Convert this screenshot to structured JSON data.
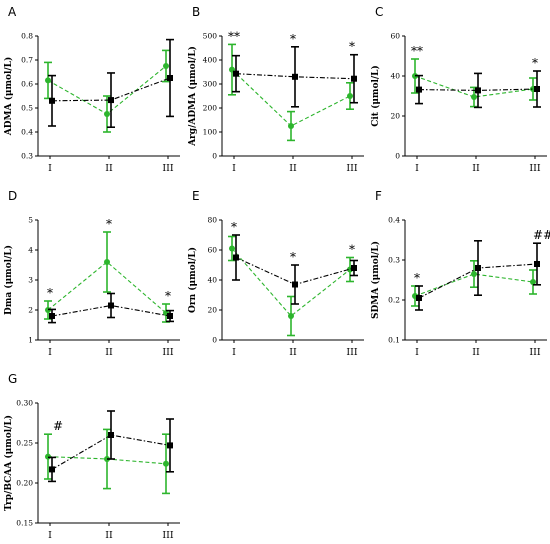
{
  "colors": {
    "green": "#2db52d",
    "black": "#000000"
  },
  "chart_data": [
    {
      "type": "line",
      "panel": "A",
      "ylabel": "ADMA (μmol/L)",
      "categories": [
        "I",
        "II",
        "III"
      ],
      "ylim": [
        0.3,
        0.8
      ],
      "yticks": [
        "0.3",
        "0.4",
        "0.5",
        "0.6",
        "0.7",
        "0.8"
      ],
      "series": [
        {
          "values": [
            0.615,
            0.475,
            0.675
          ],
          "errors": [
            0.075,
            0.075,
            0.065
          ],
          "color": "green",
          "marker": "circle",
          "dash": "dashed"
        },
        {
          "values": [
            0.53,
            0.533,
            0.625
          ],
          "errors": [
            0.105,
            0.113,
            0.16
          ],
          "color": "black",
          "marker": "square",
          "dash": "dashdot"
        }
      ],
      "annotations": []
    },
    {
      "type": "line",
      "panel": "B",
      "ylabel": "Arg/ADMA (μmol/L)",
      "categories": [
        "I",
        "II",
        "III"
      ],
      "ylim": [
        0,
        500
      ],
      "yticks": [
        "0",
        "100",
        "200",
        "300",
        "400",
        "500"
      ],
      "series": [
        {
          "values": [
            360,
            125,
            250
          ],
          "errors": [
            105,
            60,
            55
          ],
          "color": "green",
          "marker": "circle",
          "dash": "dashed"
        },
        {
          "values": [
            343,
            330,
            322
          ],
          "errors": [
            75,
            125,
            100
          ],
          "color": "black",
          "marker": "square",
          "dash": "dashdot"
        }
      ],
      "annotations": [
        {
          "cat": 0,
          "text": "**"
        },
        {
          "cat": 1,
          "text": "*"
        },
        {
          "cat": 2,
          "text": "*"
        }
      ]
    },
    {
      "type": "line",
      "panel": "C",
      "ylabel": "Cit (μmol/L)",
      "categories": [
        "I",
        "II",
        "III"
      ],
      "ylim": [
        0,
        60
      ],
      "yticks": [
        "0",
        "20",
        "40",
        "60"
      ],
      "series": [
        {
          "values": [
            40,
            29.5,
            33.5
          ],
          "errors": [
            8.5,
            4.8,
            5.5
          ],
          "color": "green",
          "marker": "circle",
          "dash": "dashed"
        },
        {
          "values": [
            33.2,
            32.8,
            33.5
          ],
          "errors": [
            7,
            8.5,
            9
          ],
          "color": "black",
          "marker": "square",
          "dash": "dashdot"
        }
      ],
      "annotations": [
        {
          "cat": 0,
          "text": "**"
        },
        {
          "cat": 2,
          "text": "*"
        }
      ]
    },
    {
      "type": "line",
      "panel": "D",
      "ylabel": "Dma (μmol/L)",
      "categories": [
        "I",
        "II",
        "III"
      ],
      "ylim": [
        1,
        5
      ],
      "yticks": [
        "1",
        "2",
        "3",
        "4",
        "5"
      ],
      "series": [
        {
          "values": [
            2.0,
            3.6,
            1.9
          ],
          "errors": [
            0.3,
            1.0,
            0.3
          ],
          "color": "green",
          "marker": "circle",
          "dash": "dashed"
        },
        {
          "values": [
            1.8,
            2.15,
            1.8
          ],
          "errors": [
            0.22,
            0.4,
            0.18
          ],
          "color": "black",
          "marker": "square",
          "dash": "dashdot"
        }
      ],
      "annotations": [
        {
          "cat": 0,
          "text": "*"
        },
        {
          "cat": 1,
          "text": "*"
        },
        {
          "cat": 2,
          "text": "*"
        }
      ]
    },
    {
      "type": "line",
      "panel": "E",
      "ylabel": "Orn (μmol/L)",
      "categories": [
        "I",
        "II",
        "III"
      ],
      "ylim": [
        0,
        80
      ],
      "yticks": [
        "0",
        "20",
        "40",
        "60",
        "80"
      ],
      "series": [
        {
          "values": [
            61,
            16,
            47
          ],
          "errors": [
            8,
            13,
            8
          ],
          "color": "green",
          "marker": "circle",
          "dash": "dashed"
        },
        {
          "values": [
            55,
            37,
            48
          ],
          "errors": [
            15,
            13,
            5
          ],
          "color": "black",
          "marker": "square",
          "dash": "dashdot"
        }
      ],
      "annotations": [
        {
          "cat": 0,
          "text": "*"
        },
        {
          "cat": 1,
          "text": "*"
        },
        {
          "cat": 2,
          "text": "*"
        }
      ]
    },
    {
      "type": "line",
      "panel": "F",
      "ylabel": "SDMA (μmol/L)",
      "categories": [
        "I",
        "II",
        "III"
      ],
      "ylim": [
        0.1,
        0.4
      ],
      "yticks": [
        "0.1",
        "0.2",
        "0.3",
        "0.4"
      ],
      "series": [
        {
          "values": [
            0.21,
            0.265,
            0.245
          ],
          "errors": [
            0.025,
            0.033,
            0.03
          ],
          "color": "green",
          "marker": "circle",
          "dash": "dashed"
        },
        {
          "values": [
            0.205,
            0.28,
            0.29
          ],
          "errors": [
            0.03,
            0.068,
            0.052
          ],
          "color": "black",
          "marker": "square",
          "dash": "dashdot"
        }
      ],
      "annotations": [
        {
          "cat": 0,
          "text": "*"
        },
        {
          "cat": 2,
          "text": "##"
        }
      ]
    },
    {
      "type": "line",
      "panel": "G",
      "ylabel": "Trp/BCAA (μmol/L)",
      "categories": [
        "I",
        "II",
        "III"
      ],
      "ylim": [
        0.15,
        0.3
      ],
      "yticks": [
        "0.15",
        "0.20",
        "0.25",
        "0.30"
      ],
      "series": [
        {
          "values": [
            0.233,
            0.23,
            0.224
          ],
          "errors": [
            0.028,
            0.037,
            0.037
          ],
          "color": "green",
          "marker": "circle",
          "dash": "dashed"
        },
        {
          "values": [
            0.217,
            0.26,
            0.247
          ],
          "errors": [
            0.015,
            0.03,
            0.033
          ],
          "color": "black",
          "marker": "square",
          "dash": "dashdot"
        }
      ],
      "annotations": [
        {
          "cat": 0,
          "text": "#"
        }
      ]
    }
  ]
}
